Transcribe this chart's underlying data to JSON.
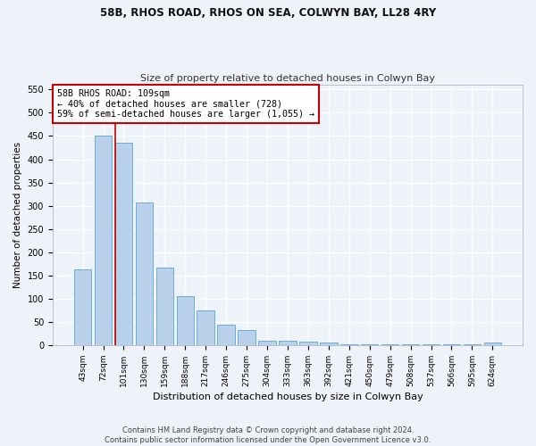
{
  "title1": "58B, RHOS ROAD, RHOS ON SEA, COLWYN BAY, LL28 4RY",
  "title2": "Size of property relative to detached houses in Colwyn Bay",
  "xlabel": "Distribution of detached houses by size in Colwyn Bay",
  "ylabel": "Number of detached properties",
  "categories": [
    "43sqm",
    "72sqm",
    "101sqm",
    "130sqm",
    "159sqm",
    "188sqm",
    "217sqm",
    "246sqm",
    "275sqm",
    "304sqm",
    "333sqm",
    "363sqm",
    "392sqm",
    "421sqm",
    "450sqm",
    "479sqm",
    "508sqm",
    "537sqm",
    "566sqm",
    "595sqm",
    "624sqm"
  ],
  "values": [
    163,
    450,
    435,
    307,
    167,
    106,
    74,
    45,
    33,
    10,
    10,
    8,
    5,
    2,
    2,
    2,
    2,
    2,
    2,
    2,
    5
  ],
  "bar_color": "#b8d0ea",
  "bar_edge_color": "#6aaed6",
  "annotation_text_line1": "58B RHOS ROAD: 109sqm",
  "annotation_text_line2": "← 40% of detached houses are smaller (728)",
  "annotation_text_line3": "59% of semi-detached houses are larger (1,055) →",
  "vline_color": "#cc0000",
  "annotation_box_edge_color": "#cc0000",
  "annotation_box_face_color": "#ffffff",
  "footer1": "Contains HM Land Registry data © Crown copyright and database right 2024.",
  "footer2": "Contains public sector information licensed under the Open Government Licence v3.0.",
  "background_color": "#eef2f9",
  "ylim": [
    0,
    560
  ],
  "yticks": [
    0,
    50,
    100,
    150,
    200,
    250,
    300,
    350,
    400,
    450,
    500,
    550
  ],
  "grid_color": "#ffffff"
}
